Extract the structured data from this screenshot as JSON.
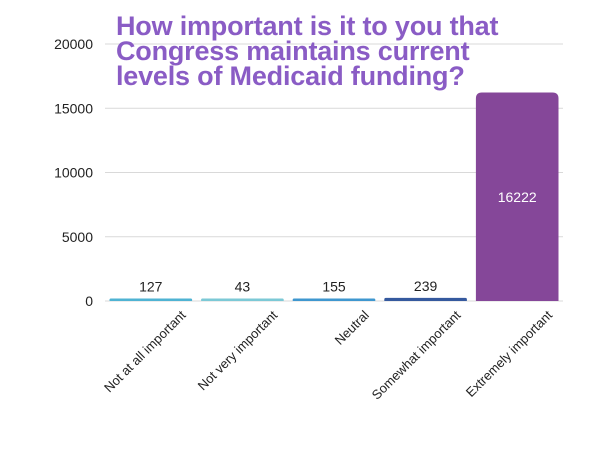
{
  "chart_data": {
    "type": "bar",
    "title_lines": [
      "How important is it to you that",
      "Congress maintains current",
      "levels of Medicaid funding?"
    ],
    "categories": [
      "Not at all important",
      "Not very important",
      "Neutral",
      "Somewhat important",
      "Extremely important"
    ],
    "values": [
      127,
      43,
      155,
      239,
      16222
    ],
    "data_labels": [
      "127",
      "43",
      "155",
      "239",
      "16222"
    ],
    "colors": [
      "#4fb3d3",
      "#7cc9d6",
      "#3f97cf",
      "#35599e",
      "#854799"
    ],
    "ylim": [
      0,
      20000
    ],
    "yticks": [
      0,
      5000,
      10000,
      15000,
      20000
    ],
    "ytick_labels": [
      "0",
      "5000",
      "10000",
      "15000",
      "20000"
    ],
    "grid": true,
    "xlabel": "",
    "ylabel": "",
    "title_color": "#8a5cc5",
    "grid_color": "#d9d9d9"
  }
}
